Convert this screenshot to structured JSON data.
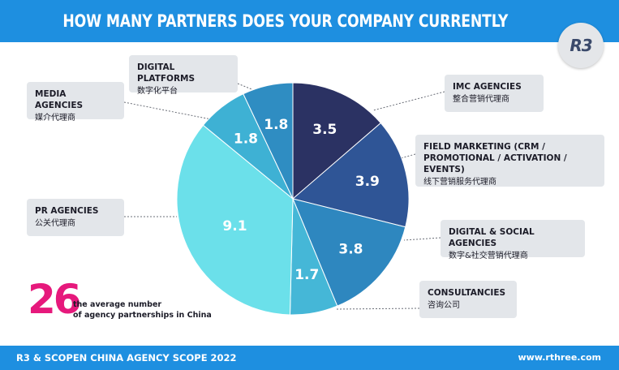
{
  "header": {
    "title": "HOW MANY PARTNERS DOES YOUR COMPANY CURRENTLY WORK WITH?"
  },
  "logo": {
    "text": "R3"
  },
  "colors": {
    "header_bg": "#1e8fe0",
    "stat_accent": "#e6197c",
    "label_bg": "#e3e6ea"
  },
  "chart_data": {
    "type": "pie",
    "title": "HOW MANY PARTNERS DOES YOUR COMPANY CURRENTLY WORK WITH?",
    "slices": [
      {
        "label_en": "IMC AGENCIES",
        "label_cn": "整合营销代理商",
        "value": 3.5,
        "display": "3.5",
        "color": "#2b3263"
      },
      {
        "label_en": "FIELD MARKETING (CRM / PROMOTIONAL / ACTIVATION / EVENTS)",
        "label_cn": "线下营销服务代理商",
        "value": 3.9,
        "display": "3.9",
        "color": "#2f5596"
      },
      {
        "label_en": "DIGITAL & SOCIAL AGENCIES",
        "label_cn": "数字&社交营销代理商",
        "value": 3.8,
        "display": "3.8",
        "color": "#2e87bf"
      },
      {
        "label_en": "CONSULTANCIES",
        "label_cn": "咨询公司",
        "value": 1.7,
        "display": "1.7",
        "color": "#45b7d7"
      },
      {
        "label_en": "PR AGENCIES",
        "label_cn": "公关代理商",
        "value": 9.1,
        "display": "9.1",
        "color": "#6be0ea"
      },
      {
        "label_en": "MEDIA AGENCIES",
        "label_cn": "媒介代理商",
        "value": 1.8,
        "display": "1.8",
        "color": "#3eb1d4"
      },
      {
        "label_en": "DIGITAL PLATFORMS",
        "label_cn": "数字化平台",
        "value": 1.8,
        "display": "1.8",
        "color": "#2f8dc2"
      }
    ]
  },
  "stat": {
    "number": "26",
    "line1": "the average number",
    "line2": "of agency partnerships in China"
  },
  "footer": {
    "left": "R3 & SCOPEN CHINA AGENCY SCOPE 2022",
    "right": "www.rthree.com"
  }
}
